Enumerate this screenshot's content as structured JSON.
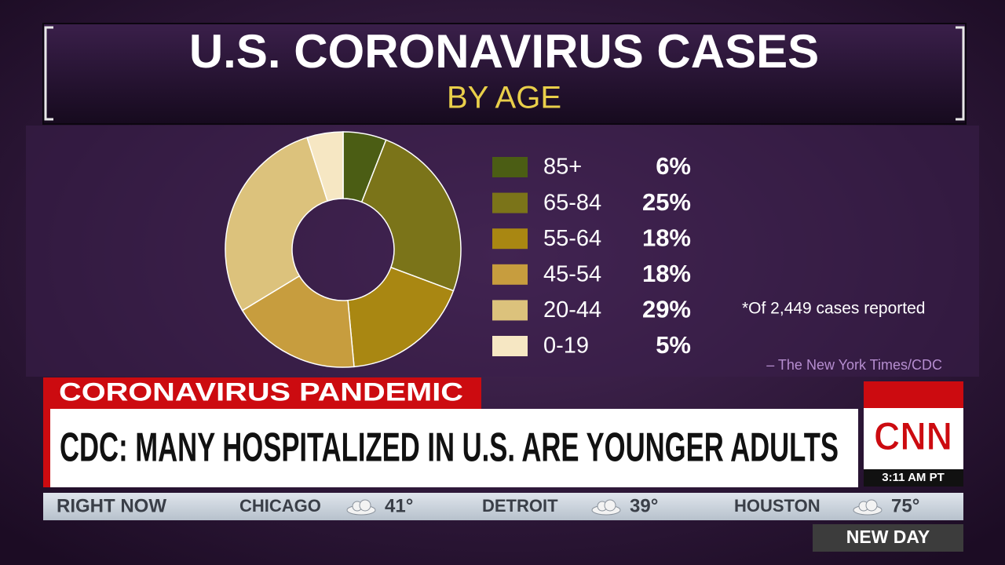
{
  "chart_data": {
    "type": "donut",
    "title": "U.S. CORONAVIRUS CASES",
    "subtitle": "BY AGE",
    "categories": [
      "85+",
      "65-84",
      "55-64",
      "45-54",
      "20-44",
      "0-19"
    ],
    "values": [
      6,
      25,
      18,
      18,
      29,
      5
    ],
    "value_labels": [
      "6%",
      "25%",
      "18%",
      "18%",
      "29%",
      "5%"
    ],
    "colors": [
      "#4b5d14",
      "#7b7419",
      "#a98712",
      "#c79d3e",
      "#dcc27c",
      "#f6e7c3"
    ],
    "note": "*Of 2,449 cases reported",
    "source": "– The New York Times/CDC"
  },
  "lower_third": {
    "topic": "CORONAVIRUS PANDEMIC",
    "headline": "CDC: MANY HOSPITALIZED IN U.S. ARE YOUNGER ADULTS",
    "network": "CNN",
    "time": "3:11 AM PT",
    "show": "NEW DAY"
  },
  "ticker": {
    "label": "RIGHT NOW",
    "cities": [
      {
        "name": "CHICAGO",
        "temp": "41°"
      },
      {
        "name": "DETROIT",
        "temp": "39°"
      },
      {
        "name": "HOUSTON",
        "temp": "75°"
      }
    ]
  }
}
